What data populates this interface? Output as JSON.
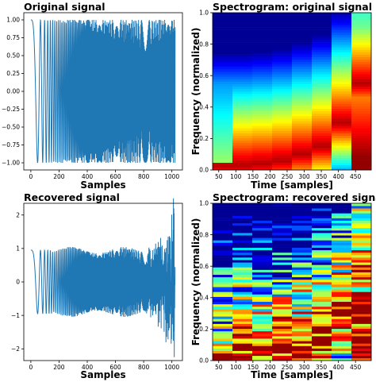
{
  "colors": {
    "line": "#1f77b4",
    "axis": "#000000",
    "background": "#ffffff"
  },
  "chart_data": [
    {
      "type": "line",
      "title": "Original signal",
      "xlabel": "Samples",
      "ylabel": "",
      "xlim": [
        -50,
        1075
      ],
      "ylim": [
        -1.1,
        1.1
      ],
      "x_ticks": [
        0,
        200,
        400,
        600,
        800,
        1000
      ],
      "y_ticks": [
        -1.0,
        -0.75,
        -0.5,
        -0.25,
        0.0,
        0.25,
        0.5,
        0.75,
        1.0
      ],
      "x_tick_labels": [
        "0",
        "200",
        "400",
        "600",
        "800",
        "1000"
      ],
      "y_tick_labels": [
        "−1.00",
        "−0.75",
        "−0.50",
        "−0.25",
        "0.00",
        "0.25",
        "0.50",
        "0.75",
        "1.00"
      ],
      "series": [
        {
          "kind": "chirp",
          "n": 1024,
          "f0": 0.0006,
          "f1": 0.42,
          "amplitude": 1.0
        }
      ],
      "grid": false
    },
    {
      "type": "heatmap",
      "title": "Spectrogram: original signal",
      "xlabel": "Time [samples]",
      "ylabel": "Frequency (normalized)",
      "xlim": [
        32,
        496
      ],
      "ylim": [
        0,
        1
      ],
      "x_ticks": [
        50,
        100,
        150,
        200,
        250,
        300,
        350,
        400,
        450
      ],
      "y_ticks": [
        0.0,
        0.2,
        0.4,
        0.6,
        0.8,
        1.0
      ],
      "x_tick_labels": [
        "50",
        "100",
        "150",
        "200",
        "250",
        "300",
        "350",
        "400",
        "450"
      ],
      "y_tick_labels": [
        "0.0",
        "0.2",
        "0.4",
        "0.6",
        "0.8",
        "1.0"
      ],
      "time_bins": 8,
      "peak_frequency": [
        0.03,
        0.03,
        0.04,
        0.06,
        0.1,
        0.15,
        0.3,
        0.55
      ],
      "noise": 0.0,
      "grid": false
    },
    {
      "type": "line",
      "title": "Recovered signal",
      "xlabel": "Samples",
      "ylabel": "",
      "xlim": [
        -50,
        1075
      ],
      "ylim": [
        -2.35,
        2.35
      ],
      "x_ticks": [
        0,
        200,
        400,
        600,
        800,
        1000
      ],
      "y_ticks": [
        -2,
        -1,
        0,
        1,
        2
      ],
      "x_tick_labels": [
        "0",
        "200",
        "400",
        "600",
        "800",
        "1000"
      ],
      "y_tick_labels": [
        "−2",
        "−1",
        "0",
        "1",
        "2"
      ],
      "series": [
        {
          "kind": "chirp",
          "n": 1024,
          "f0": 0.0006,
          "f1": 0.42,
          "amplitude": 0.95,
          "noise_start": 800,
          "noise_max": 1.2,
          "min": -2.25,
          "max": 2.2
        }
      ],
      "grid": false
    },
    {
      "type": "heatmap",
      "title": "Spectrogram: recovered signal",
      "xlabel": "Time [samples]",
      "ylabel": "Frequency (normalized)",
      "xlim": [
        32,
        496
      ],
      "ylim": [
        0,
        1
      ],
      "x_ticks": [
        50,
        100,
        150,
        200,
        250,
        300,
        350,
        400,
        450
      ],
      "y_ticks": [
        0.0,
        0.2,
        0.4,
        0.6,
        0.8,
        1.0
      ],
      "x_tick_labels": [
        "50",
        "100",
        "150",
        "200",
        "250",
        "300",
        "350",
        "400",
        "450"
      ],
      "y_tick_labels": [
        "0.0",
        "0.2",
        "0.4",
        "0.6",
        "0.8",
        "1.0"
      ],
      "time_bins": 8,
      "peak_frequency": [
        0.03,
        0.03,
        0.04,
        0.06,
        0.1,
        0.15,
        0.3,
        0.55
      ],
      "noise": 0.35,
      "grid": false
    }
  ]
}
